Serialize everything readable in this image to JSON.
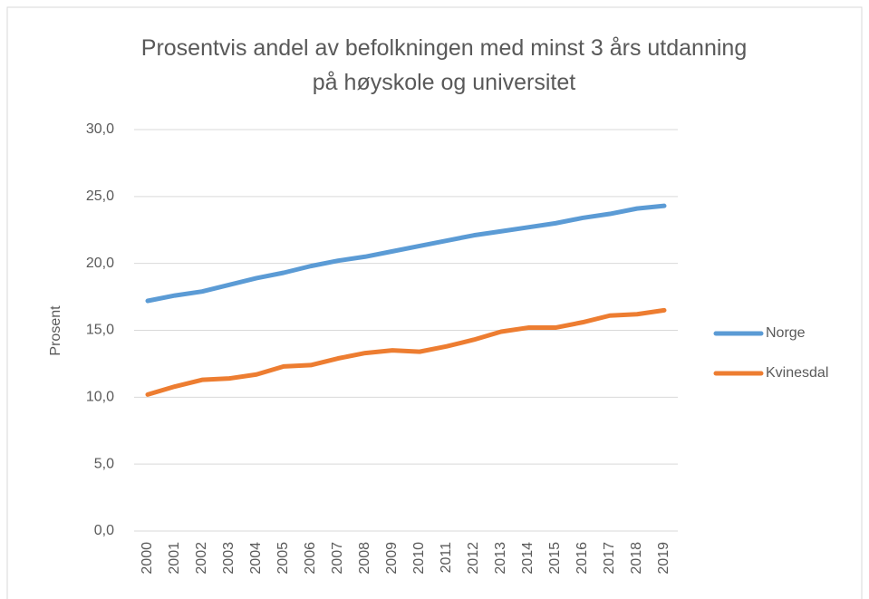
{
  "chart_data": {
    "type": "line",
    "title": "Prosentvis andel av befolkningen med minst 3 års utdanning på høyskole og universitet",
    "y_label": "Prosent",
    "categories": [
      "2000",
      "2001",
      "2002",
      "2003",
      "2004",
      "2005",
      "2006",
      "2007",
      "2008",
      "2009",
      "2010",
      "2011",
      "2012",
      "2013",
      "2014",
      "2015",
      "2016",
      "2017",
      "2018",
      "2019"
    ],
    "series": [
      {
        "name": "Norge",
        "color": "#5b9bd5",
        "values": [
          17.2,
          17.6,
          17.9,
          18.4,
          18.9,
          19.3,
          19.8,
          20.2,
          20.5,
          20.9,
          21.3,
          21.7,
          22.1,
          22.4,
          22.7,
          23.0,
          23.4,
          23.7,
          24.1,
          24.3
        ]
      },
      {
        "name": "Kvinesdal",
        "color": "#ed7d31",
        "values": [
          10.2,
          10.8,
          11.3,
          11.4,
          11.7,
          12.3,
          12.4,
          12.9,
          13.3,
          13.5,
          13.4,
          13.8,
          14.3,
          14.9,
          15.2,
          15.2,
          15.6,
          16.1,
          16.2,
          16.5
        ]
      }
    ],
    "ylim": [
      0,
      30
    ],
    "yticks": [
      {
        "value": 0,
        "label": "0,0"
      },
      {
        "value": 5,
        "label": "5,0"
      },
      {
        "value": 10,
        "label": "10,0"
      },
      {
        "value": 15,
        "label": "15,0"
      },
      {
        "value": 20,
        "label": "20,0"
      },
      {
        "value": 25,
        "label": "25,0"
      },
      {
        "value": 30,
        "label": "30,0"
      }
    ],
    "grid": true,
    "legend": "right"
  }
}
